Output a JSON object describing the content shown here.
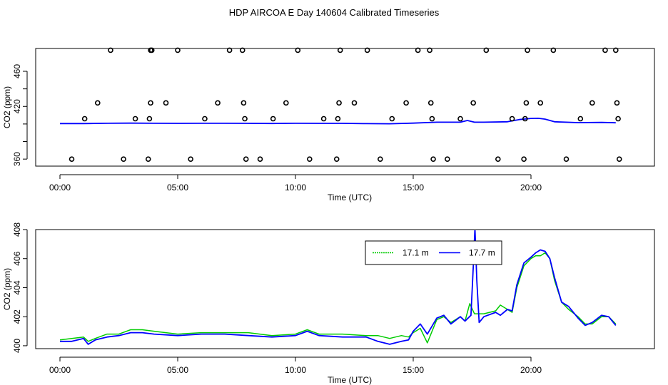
{
  "title": "HDP AIRCOA E  Day 140604  Calibrated Timeseries",
  "chart_data": [
    {
      "type": "line+scatter",
      "xlabel": "Time (UTC)",
      "ylabel": "CO2 (ppm)",
      "xlim": [
        0,
        24
      ],
      "ylim": [
        352,
        486
      ],
      "x_ticks": [
        0,
        5,
        10,
        15,
        20
      ],
      "x_tick_labels": [
        "00:00",
        "05:00",
        "10:00",
        "15:00",
        "20:00"
      ],
      "y_ticks": [
        360,
        380,
        400,
        420,
        440,
        460
      ],
      "y_tick_labels": [
        "360",
        "",
        "",
        "420",
        "",
        "460"
      ],
      "grid": false,
      "series": [
        {
          "kind": "line",
          "color": "#0000ff",
          "x": [
            0,
            1,
            2,
            3,
            4,
            5,
            6,
            7,
            8,
            9,
            10,
            11,
            12,
            13,
            14,
            15,
            16,
            17,
            17.3,
            17.6,
            18,
            19,
            19.5,
            20,
            20.3,
            20.6,
            21,
            22,
            23,
            23.6
          ],
          "y": [
            400.5,
            400.5,
            400.8,
            401,
            400.8,
            400.7,
            400.8,
            400.8,
            400.7,
            400.6,
            400.8,
            400.7,
            400.7,
            400.4,
            400.2,
            401,
            402,
            402,
            404,
            402,
            402,
            402.5,
            405,
            406.3,
            406.5,
            405.5,
            402.5,
            401.5,
            401.8,
            401.4
          ]
        },
        {
          "kind": "points",
          "marker": "circle",
          "x": [
            0.5,
            1.05,
            1.6,
            2.15,
            2.7,
            3.2,
            3.75,
            3.8,
            3.85,
            3.85,
            3.9,
            4.5,
            5.0,
            5.55,
            6.15,
            6.7,
            7.2,
            7.75,
            7.8,
            7.85,
            7.9,
            8.5,
            9.05,
            9.6,
            10.1,
            10.6,
            11.2,
            11.75,
            11.8,
            11.85,
            11.9,
            12.5,
            13.05,
            13.6,
            14.1,
            14.7,
            15.2,
            15.7,
            15.75,
            15.8,
            15.85,
            16.45,
            17.0,
            17.55,
            18.1,
            18.6,
            19.2,
            19.7,
            19.75,
            19.8,
            19.85,
            20.4,
            20.95,
            21.5,
            22.1,
            22.6,
            23.15,
            23.6,
            23.65,
            23.7,
            23.75
          ],
          "y": [
            360,
            406,
            424,
            484,
            360,
            406,
            360,
            406,
            424,
            484,
            484,
            424,
            484,
            360,
            406,
            424,
            484,
            484,
            424,
            406,
            360,
            360,
            406,
            424,
            484,
            360,
            406,
            360,
            406,
            424,
            484,
            424,
            484,
            360,
            406,
            424,
            484,
            484,
            424,
            406,
            360,
            360,
            406,
            424,
            484,
            360,
            406,
            360,
            406,
            424,
            484,
            424,
            484,
            360,
            406,
            424,
            484,
            484,
            424,
            406,
            360
          ]
        }
      ]
    },
    {
      "type": "line",
      "xlabel": "Time (UTC)",
      "ylabel": "CO2 (ppm)",
      "xlim": [
        0,
        24
      ],
      "ylim": [
        399.8,
        408
      ],
      "x_ticks": [
        0,
        5,
        10,
        15,
        20
      ],
      "x_tick_labels": [
        "00:00",
        "05:00",
        "10:00",
        "15:00",
        "20:00"
      ],
      "y_ticks": [
        400,
        402,
        404,
        406,
        408
      ],
      "y_tick_labels": [
        "400",
        "402",
        "404",
        "406",
        "408"
      ],
      "grid": false,
      "legend_position": "top-right",
      "series": [
        {
          "name": "17.1 m",
          "color": "#00cc00",
          "x": [
            0,
            0.5,
            1,
            1.2,
            1.5,
            2,
            2.5,
            3,
            3.5,
            4,
            5,
            6,
            7,
            8,
            9,
            10,
            10.5,
            11,
            12,
            13,
            13.5,
            14,
            14.5,
            14.8,
            15,
            15.3,
            15.6,
            16,
            16.3,
            16.6,
            17,
            17.2,
            17.4,
            17.6,
            17.8,
            18,
            18.5,
            18.7,
            19,
            19.2,
            19.4,
            19.7,
            20,
            20.2,
            20.4,
            20.6,
            20.8,
            21,
            21.3,
            21.6,
            22,
            22.3,
            22.6,
            23,
            23.3,
            23.6
          ],
          "y": [
            400.4,
            400.5,
            400.6,
            400.3,
            400.5,
            400.8,
            400.8,
            401.1,
            401.1,
            401,
            400.8,
            400.9,
            400.9,
            400.9,
            400.7,
            400.8,
            401.1,
            400.8,
            400.8,
            400.7,
            400.7,
            400.5,
            400.7,
            400.6,
            400.9,
            401.2,
            400.2,
            401.8,
            402,
            401.6,
            402,
            401.7,
            402.9,
            402.2,
            402.2,
            402.2,
            402.4,
            402.8,
            402.5,
            402.3,
            404,
            405.5,
            406,
            406.2,
            406.2,
            406.4,
            406,
            404.5,
            403,
            402.5,
            402,
            401.5,
            401.5,
            402,
            402,
            401.5
          ]
        },
        {
          "name": "17.7 m",
          "color": "#0000ff",
          "x": [
            0,
            0.5,
            1,
            1.2,
            1.5,
            2,
            2.5,
            3,
            3.5,
            4,
            5,
            6,
            7,
            8,
            9,
            10,
            10.5,
            11,
            12,
            13,
            13.5,
            14,
            14.5,
            14.8,
            15,
            15.3,
            15.6,
            16,
            16.3,
            16.6,
            17,
            17.2,
            17.45,
            17.55,
            17.62,
            17.7,
            17.8,
            18,
            18.5,
            18.7,
            19,
            19.2,
            19.4,
            19.7,
            20,
            20.2,
            20.4,
            20.6,
            20.8,
            21,
            21.3,
            21.6,
            22,
            22.3,
            22.6,
            23,
            23.3,
            23.6
          ],
          "y": [
            400.3,
            400.3,
            400.5,
            400.1,
            400.4,
            400.6,
            400.7,
            400.9,
            400.9,
            400.8,
            400.7,
            400.8,
            400.8,
            400.7,
            400.6,
            400.7,
            401,
            400.7,
            400.6,
            400.6,
            400.3,
            400.1,
            400.3,
            400.4,
            401,
            401.5,
            400.8,
            401.9,
            402.1,
            401.5,
            402,
            401.7,
            402.1,
            405.5,
            408.1,
            404.5,
            401.6,
            402,
            402.3,
            402.1,
            402.5,
            402.4,
            404.2,
            405.7,
            406.1,
            406.4,
            406.6,
            406.5,
            406,
            404.7,
            403,
            402.7,
            401.9,
            401.4,
            401.6,
            402.1,
            402,
            401.4
          ]
        }
      ]
    }
  ]
}
